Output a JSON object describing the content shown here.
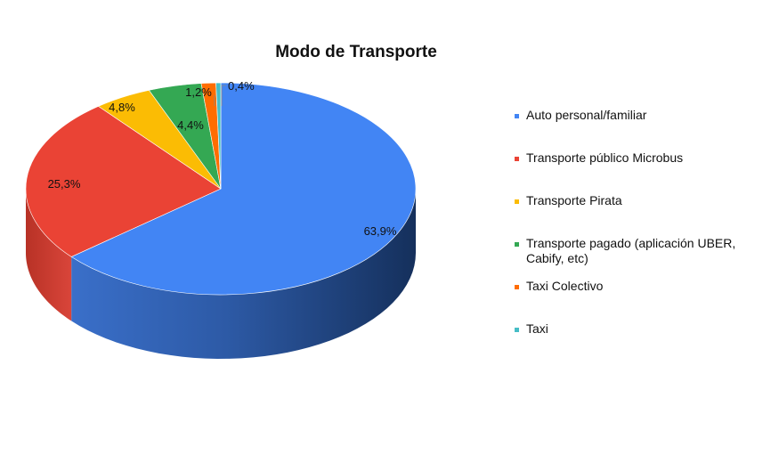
{
  "chart_data": {
    "type": "pie",
    "title": "Modo de Transporte",
    "categories": [
      "Auto personal/familiar",
      "Transporte público Microbus",
      "Transporte Pirata",
      "Transporte pagado (aplicación UBER, Cabify, etc)",
      "Taxi Colectivo",
      "Taxi"
    ],
    "values": [
      63.9,
      25.3,
      4.8,
      4.4,
      1.2,
      0.4
    ],
    "labels": [
      "63,9%",
      "25,3%",
      "4,8%",
      "4,4%",
      "1,2%",
      "0,4%"
    ],
    "colors": [
      "#4285f4",
      "#ea4335",
      "#fbbc04",
      "#34a853",
      "#ff6d01",
      "#46bdc6"
    ],
    "legend_position": "right",
    "style": "3d"
  }
}
